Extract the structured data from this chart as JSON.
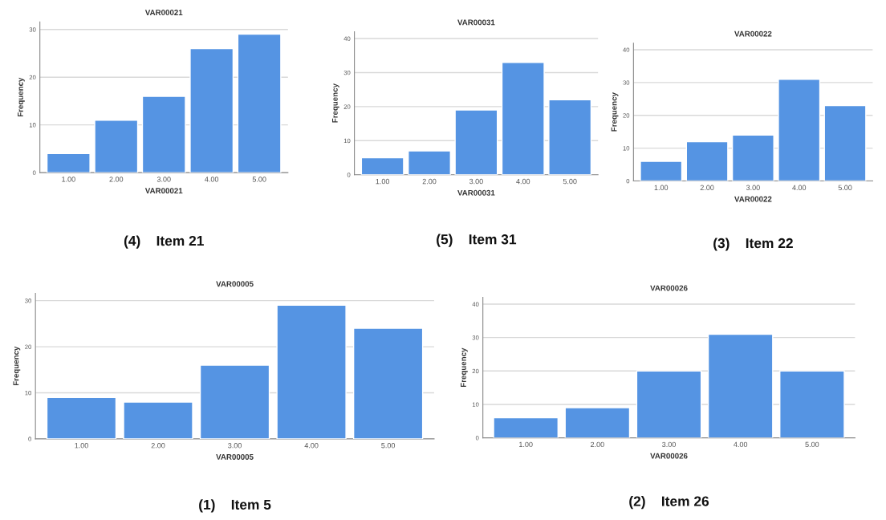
{
  "chart_data": [
    {
      "type": "bar",
      "title": "VAR00021",
      "xlabel": "VAR00021",
      "ylabel": "Frequency",
      "categories": [
        "1.00",
        "2.00",
        "3.00",
        "4.00",
        "5.00"
      ],
      "values": [
        4,
        11,
        16,
        26,
        29
      ],
      "color": "#5594e3",
      "ylim": [
        0,
        31.6
      ],
      "yticks": [
        0,
        10,
        20,
        30
      ],
      "grid": "y",
      "annotations": [
        "(4)    Item 21"
      ]
    },
    {
      "type": "bar",
      "title": "VAR00031",
      "xlabel": "VAR00031",
      "ylabel": "Frequency",
      "categories": [
        "1.00",
        "2.00",
        "3.00",
        "4.00",
        "5.00"
      ],
      "values": [
        5,
        7,
        19,
        33,
        22
      ],
      "color": "#5594e3",
      "ylim": [
        0,
        42
      ],
      "yticks": [
        0,
        10,
        20,
        30,
        40
      ],
      "grid": "y",
      "annotations": [
        "(5)    Item 31"
      ]
    },
    {
      "type": "bar",
      "title": "VAR00022",
      "xlabel": "VAR00022",
      "ylabel": "Frequency",
      "categories": [
        "1.00",
        "2.00",
        "3.00",
        "4.00",
        "5.00"
      ],
      "values": [
        6,
        12,
        14,
        31,
        23
      ],
      "color": "#5594e3",
      "ylim": [
        0,
        42
      ],
      "yticks": [
        0,
        10,
        20,
        30,
        40
      ],
      "grid": "y",
      "annotations": [
        "(3)    Item 22"
      ]
    },
    {
      "type": "bar",
      "title": "VAR00005",
      "xlabel": "VAR00005",
      "ylabel": "Frequency",
      "categories": [
        "1.00",
        "2.00",
        "3.00",
        "4.00",
        "5.00"
      ],
      "values": [
        9,
        8,
        16,
        29,
        24
      ],
      "color": "#5594e3",
      "ylim": [
        0,
        31.6
      ],
      "yticks": [
        0,
        10,
        20,
        30
      ],
      "grid": "y",
      "annotations": [
        "(1)    Item 5"
      ]
    },
    {
      "type": "bar",
      "title": "VAR00026",
      "xlabel": "VAR00026",
      "ylabel": "Frequency",
      "categories": [
        "1.00",
        "2.00",
        "3.00",
        "4.00",
        "5.00"
      ],
      "values": [
        6,
        9,
        20,
        31,
        20
      ],
      "color": "#5594e3",
      "ylim": [
        0,
        42
      ],
      "yticks": [
        0,
        10,
        20,
        30,
        40
      ],
      "grid": "y",
      "annotations": [
        "(2)    Item 26"
      ]
    }
  ]
}
